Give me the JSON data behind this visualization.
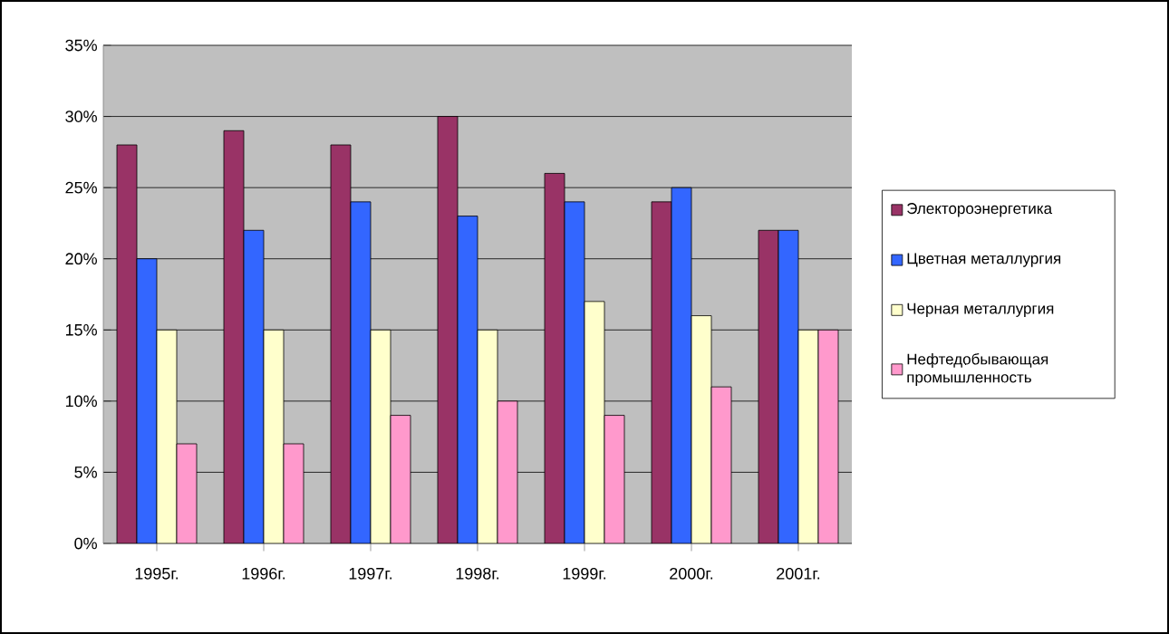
{
  "chart_data": {
    "type": "bar",
    "categories": [
      "1995г.",
      "1996г.",
      "1997г.",
      "1998г.",
      "1999г.",
      "2000г.",
      "2001г."
    ],
    "series": [
      {
        "name": "Электороэнергетика",
        "color": "#993366",
        "values": [
          28,
          29,
          28,
          30,
          26,
          24,
          22
        ]
      },
      {
        "name": "Цветная металлургия",
        "color": "#3366ff",
        "values": [
          20,
          22,
          24,
          23,
          24,
          25,
          22
        ]
      },
      {
        "name": "Черная металлургия",
        "color": "#ffffcc",
        "values": [
          15,
          15,
          15,
          15,
          17,
          16,
          15
        ]
      },
      {
        "name": "Нефтедобывающая промышленность",
        "color": "#ff99cc",
        "values": [
          7,
          7,
          9,
          10,
          9,
          11,
          15
        ]
      }
    ],
    "ylim": [
      0,
      35
    ],
    "yticks": [
      {
        "value": 0,
        "label": "0%"
      },
      {
        "value": 5,
        "label": "5%"
      },
      {
        "value": 10,
        "label": "10%"
      },
      {
        "value": 15,
        "label": "15%"
      },
      {
        "value": 20,
        "label": "20%"
      },
      {
        "value": 25,
        "label": "25%"
      },
      {
        "value": 30,
        "label": "30%"
      },
      {
        "value": 35,
        "label": "35%"
      }
    ],
    "grid": "y",
    "legend": "right"
  }
}
